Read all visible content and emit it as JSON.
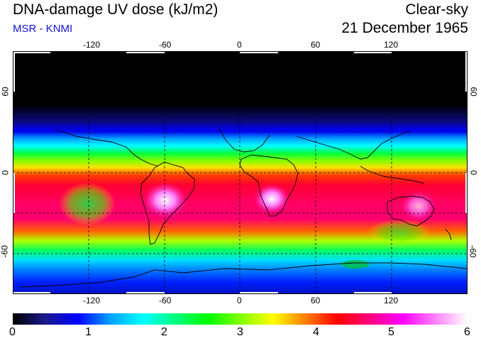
{
  "header": {
    "title": "DNA-damage UV dose (kJ/m2)",
    "source": "MSR - KNMI",
    "condition": "Clear-sky",
    "date": "21 December 1965"
  },
  "map": {
    "longitude_ticks": [
      "-120",
      "-60",
      "0",
      "60",
      "120"
    ],
    "latitude_ticks_left": [
      "60",
      "0",
      "-60"
    ],
    "latitude_ticks_right": [
      "60",
      "0",
      "-60"
    ]
  },
  "colorbar": {
    "ticks": [
      "0",
      "1",
      "2",
      "3",
      "4",
      "5",
      "6"
    ],
    "colors": [
      "#000000",
      "#1a1a8c",
      "#0000ff",
      "#00a0ff",
      "#00ffff",
      "#00ff80",
      "#00ff00",
      "#80ff00",
      "#ffff00",
      "#ff8000",
      "#ff0000",
      "#ff0080",
      "#ff00ff",
      "#ff80ff",
      "#ffffff"
    ]
  },
  "legend": {
    "colors": {
      "background": "#ffffff",
      "source_text": "#1010d8",
      "coastline": "#000000",
      "gridline": "#000000"
    }
  }
}
